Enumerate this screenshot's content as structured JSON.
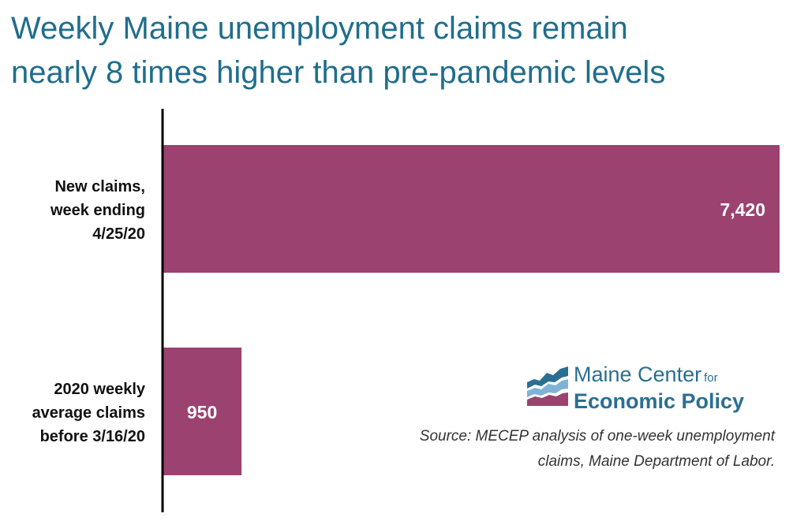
{
  "title": {
    "line1": "Weekly Maine unemployment claims remain",
    "line2": "nearly 8 times higher than pre-pandemic levels"
  },
  "colors": {
    "title": "#1f6e8c",
    "bar": "#9c4270",
    "axis": "#000000",
    "logo": "#2a6f91"
  },
  "chart_data": {
    "type": "bar",
    "orientation": "horizontal",
    "categories": [
      [
        "New claims,",
        "week ending",
        "4/25/20"
      ],
      [
        "2020 weekly",
        "average claims",
        "before 3/16/20"
      ]
    ],
    "values": [
      7420,
      950
    ],
    "data_labels": [
      "7,420",
      "950"
    ],
    "xlim": [
      0,
      7420
    ]
  },
  "logo": {
    "line1": "Maine Center",
    "line1_small": "for",
    "line2": "Economic Policy"
  },
  "source": {
    "line1": "Source: MECEP analysis of one-week unemployment",
    "line2": "claims, Maine Department of Labor."
  }
}
